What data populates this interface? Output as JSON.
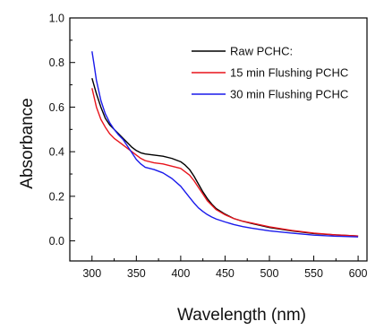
{
  "chart_data": {
    "type": "line",
    "title": "",
    "xlabel": "Wavelength (nm)",
    "ylabel": "Absorbance",
    "xlim": [
      275,
      610
    ],
    "ylim": [
      -0.09,
      1.0
    ],
    "x_ticks": [
      300,
      350,
      400,
      450,
      500,
      550,
      600
    ],
    "y_ticks": [
      0.0,
      0.2,
      0.4,
      0.6,
      0.8,
      1.0
    ],
    "y_tick_labels": [
      "0.0",
      "0.2",
      "0.4",
      "0.6",
      "0.8",
      "1.0"
    ],
    "grid": false,
    "legend_position": "top-right",
    "series": [
      {
        "name": "Raw PCHC:",
        "color": "#000000",
        "x": [
          300,
          305,
          310,
          315,
          320,
          325,
          330,
          335,
          340,
          345,
          350,
          355,
          360,
          370,
          380,
          390,
          400,
          405,
          410,
          415,
          420,
          425,
          430,
          435,
          440,
          450,
          460,
          470,
          480,
          500,
          525,
          550,
          575,
          600
        ],
        "y": [
          0.73,
          0.66,
          0.6,
          0.55,
          0.52,
          0.5,
          0.48,
          0.46,
          0.44,
          0.42,
          0.405,
          0.395,
          0.39,
          0.385,
          0.38,
          0.37,
          0.355,
          0.34,
          0.32,
          0.29,
          0.255,
          0.22,
          0.19,
          0.165,
          0.145,
          0.12,
          0.1,
          0.088,
          0.078,
          0.06,
          0.045,
          0.033,
          0.027,
          0.022
        ]
      },
      {
        "name": "15 min Flushing PCHC",
        "color": "#e8141c",
        "x": [
          300,
          305,
          310,
          315,
          320,
          325,
          330,
          335,
          340,
          345,
          350,
          355,
          360,
          370,
          380,
          390,
          400,
          405,
          410,
          415,
          420,
          425,
          430,
          435,
          440,
          450,
          460,
          470,
          480,
          500,
          525,
          550,
          575,
          600
        ],
        "y": [
          0.685,
          0.6,
          0.545,
          0.51,
          0.48,
          0.46,
          0.445,
          0.43,
          0.415,
          0.4,
          0.385,
          0.37,
          0.36,
          0.35,
          0.345,
          0.335,
          0.325,
          0.31,
          0.295,
          0.27,
          0.24,
          0.21,
          0.18,
          0.16,
          0.14,
          0.117,
          0.1,
          0.088,
          0.08,
          0.063,
          0.047,
          0.035,
          0.027,
          0.022
        ]
      },
      {
        "name": "30 min Flushing PCHC",
        "color": "#1a1aeb",
        "x": [
          300,
          302,
          305,
          310,
          315,
          320,
          325,
          330,
          335,
          340,
          345,
          350,
          355,
          360,
          370,
          380,
          390,
          400,
          405,
          410,
          415,
          420,
          425,
          430,
          435,
          440,
          450,
          460,
          470,
          480,
          500,
          525,
          550,
          575,
          600
        ],
        "y": [
          0.85,
          0.8,
          0.72,
          0.63,
          0.57,
          0.53,
          0.5,
          0.475,
          0.455,
          0.425,
          0.395,
          0.365,
          0.345,
          0.33,
          0.32,
          0.305,
          0.28,
          0.245,
          0.22,
          0.195,
          0.17,
          0.148,
          0.132,
          0.118,
          0.107,
          0.098,
          0.085,
          0.073,
          0.064,
          0.057,
          0.045,
          0.035,
          0.026,
          0.021,
          0.018
        ]
      }
    ]
  }
}
